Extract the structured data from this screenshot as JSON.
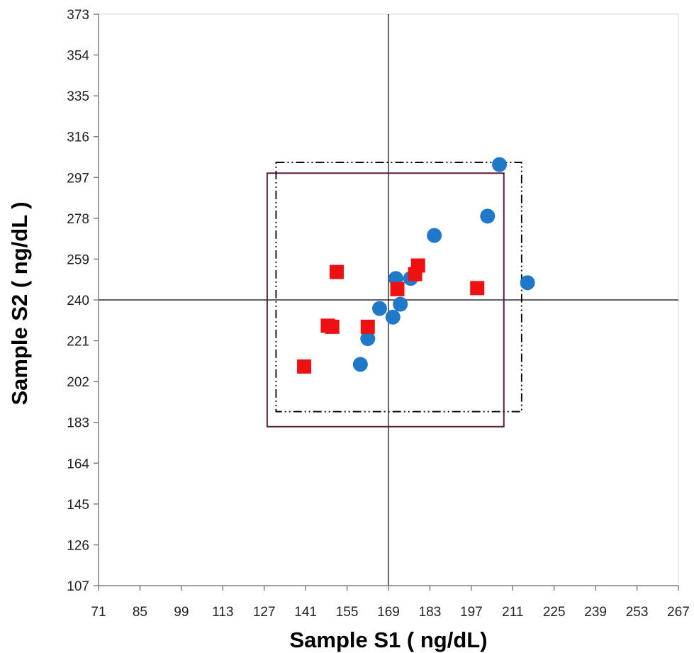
{
  "chart_data": {
    "type": "scatter",
    "title": "",
    "xlabel": "Sample S1 ( ng/dL)",
    "ylabel": "Sample S2 ( ng/dL )",
    "xlim": [
      71,
      267
    ],
    "ylim": [
      107,
      373
    ],
    "x_ticks": [
      "71",
      "85",
      "99",
      "113",
      "127",
      "141",
      "155",
      "169",
      "183",
      "197",
      "211",
      "225",
      "239",
      "253",
      "267"
    ],
    "y_ticks": [
      "107",
      "126",
      "145",
      "164",
      "183",
      "202",
      "221",
      "240",
      "259",
      "278",
      "297",
      "316",
      "335",
      "354",
      "373"
    ],
    "x_tick_values": [
      71,
      85,
      99,
      113,
      127,
      141,
      155,
      169,
      183,
      197,
      211,
      225,
      239,
      253,
      267
    ],
    "y_tick_values": [
      107,
      126,
      145,
      164,
      183,
      202,
      221,
      240,
      259,
      278,
      297,
      316,
      335,
      354,
      373
    ],
    "grid": false,
    "legend": "none",
    "reference_lines": {
      "x": 169,
      "y": 240
    },
    "boxes": [
      {
        "style": "solid",
        "color": "#5a1f3f",
        "x": [
          128,
          208
        ],
        "y": [
          181,
          299
        ]
      },
      {
        "style": "dash-dot",
        "color": "#000000",
        "x": [
          131,
          214
        ],
        "y": [
          188,
          304
        ]
      }
    ],
    "series": [
      {
        "marker": "circle",
        "color": "#1f78c8",
        "points": [
          [
            159.5,
            210
          ],
          [
            162,
            222
          ],
          [
            166,
            236
          ],
          [
            170.5,
            232
          ],
          [
            173,
            238
          ],
          [
            171.5,
            250
          ],
          [
            176.5,
            250
          ],
          [
            184.5,
            270
          ],
          [
            202.5,
            279
          ],
          [
            206.5,
            303
          ],
          [
            216,
            248
          ]
        ]
      },
      {
        "marker": "square",
        "color": "#ee1111",
        "points": [
          [
            140.5,
            209
          ],
          [
            148.5,
            228
          ],
          [
            150,
            227.5
          ],
          [
            151.5,
            253
          ],
          [
            162,
            227.5
          ],
          [
            172,
            245
          ],
          [
            178,
            252
          ],
          [
            179,
            256
          ],
          [
            199,
            245.5
          ]
        ]
      }
    ]
  }
}
